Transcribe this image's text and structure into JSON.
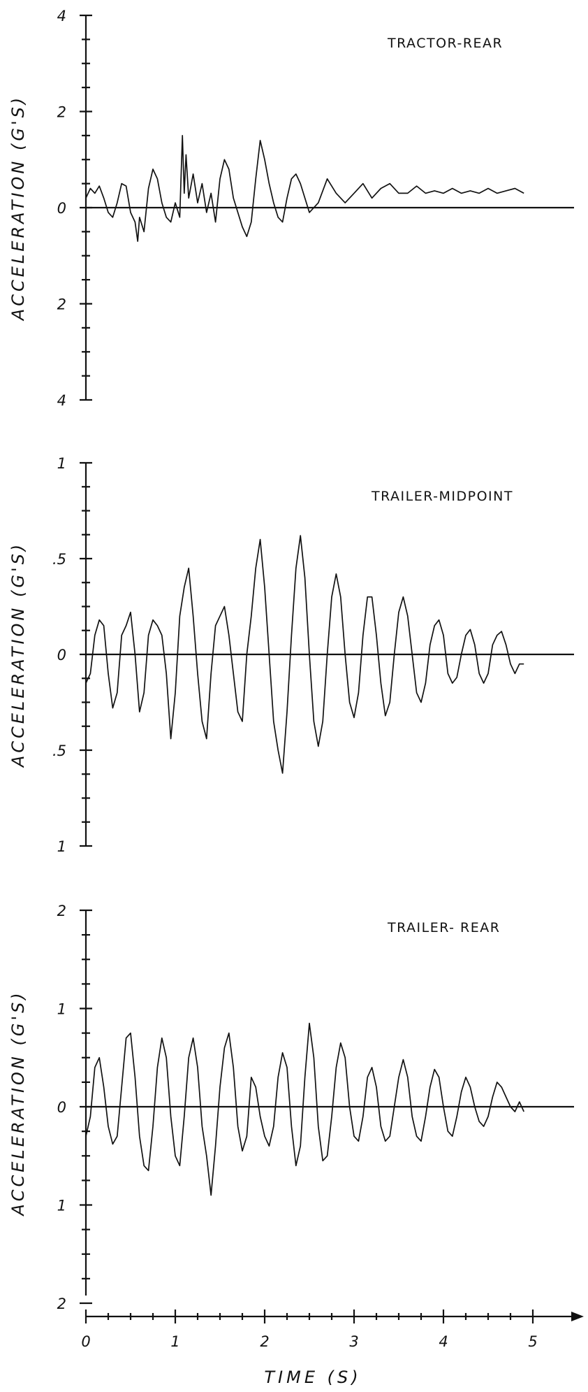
{
  "chart_data": [
    {
      "type": "line",
      "title": "TRACTOR-REAR",
      "ylabel": "ACCELERATION (G'S)",
      "xlabel": "",
      "xlim": [
        0,
        5.5
      ],
      "ylim": [
        -4,
        4
      ],
      "yticks": [
        4,
        2,
        0,
        -2,
        -4
      ],
      "ytick_labels": [
        "4",
        "2",
        "0",
        "2",
        "4"
      ],
      "grid": false,
      "series": [
        {
          "x": [
            0.0,
            0.05,
            0.1,
            0.15,
            0.2,
            0.25,
            0.3,
            0.35,
            0.4,
            0.45,
            0.5,
            0.55,
            0.58,
            0.6,
            0.65,
            0.7,
            0.75,
            0.8,
            0.85,
            0.9,
            0.95,
            1.0,
            1.05,
            1.08,
            1.1,
            1.12,
            1.15,
            1.2,
            1.25,
            1.3,
            1.35,
            1.4,
            1.45,
            1.5,
            1.55,
            1.6,
            1.65,
            1.7,
            1.75,
            1.8,
            1.85,
            1.9,
            1.95,
            2.0,
            2.05,
            2.1,
            2.15,
            2.2,
            2.25,
            2.3,
            2.35,
            2.4,
            2.5,
            2.6,
            2.7,
            2.8,
            2.9,
            3.0,
            3.1,
            3.2,
            3.3,
            3.4,
            3.5,
            3.6,
            3.7,
            3.8,
            3.9,
            4.0,
            4.1,
            4.2,
            4.3,
            4.4,
            4.5,
            4.6,
            4.7,
            4.8,
            4.9
          ],
          "y": [
            0.2,
            0.4,
            0.3,
            0.45,
            0.2,
            -0.1,
            -0.2,
            0.1,
            0.5,
            0.45,
            -0.1,
            -0.3,
            -0.7,
            -0.2,
            -0.5,
            0.4,
            0.8,
            0.6,
            0.1,
            -0.2,
            -0.3,
            0.1,
            -0.2,
            1.5,
            0.3,
            1.1,
            0.2,
            0.7,
            0.1,
            0.5,
            -0.1,
            0.3,
            -0.3,
            0.6,
            1.0,
            0.8,
            0.2,
            -0.1,
            -0.4,
            -0.6,
            -0.3,
            0.6,
            1.4,
            1.0,
            0.5,
            0.1,
            -0.2,
            -0.3,
            0.2,
            0.6,
            0.7,
            0.5,
            -0.1,
            0.1,
            0.6,
            0.3,
            0.1,
            0.3,
            0.5,
            0.2,
            0.4,
            0.5,
            0.3,
            0.3,
            0.45,
            0.3,
            0.35,
            0.3,
            0.4,
            0.3,
            0.35,
            0.3,
            0.4,
            0.3,
            0.35,
            0.4,
            0.3
          ]
        }
      ]
    },
    {
      "type": "line",
      "title": "TRAILER-MIDPOINT",
      "ylabel": "ACCELERATION (G'S)",
      "xlabel": "",
      "xlim": [
        0,
        5.5
      ],
      "ylim": [
        -1,
        1
      ],
      "yticks": [
        1,
        0.5,
        0,
        -0.5,
        -1
      ],
      "ytick_labels": [
        "1",
        ".5",
        "0",
        ".5",
        "1"
      ],
      "grid": false,
      "series": [
        {
          "x": [
            0.0,
            0.05,
            0.1,
            0.15,
            0.2,
            0.25,
            0.3,
            0.35,
            0.4,
            0.45,
            0.5,
            0.55,
            0.6,
            0.65,
            0.7,
            0.75,
            0.8,
            0.85,
            0.9,
            0.95,
            1.0,
            1.05,
            1.1,
            1.15,
            1.2,
            1.25,
            1.3,
            1.35,
            1.4,
            1.45,
            1.5,
            1.55,
            1.6,
            1.65,
            1.7,
            1.75,
            1.8,
            1.85,
            1.9,
            1.95,
            2.0,
            2.05,
            2.1,
            2.15,
            2.2,
            2.25,
            2.3,
            2.35,
            2.4,
            2.45,
            2.5,
            2.55,
            2.6,
            2.65,
            2.7,
            2.75,
            2.8,
            2.85,
            2.9,
            2.95,
            3.0,
            3.05,
            3.1,
            3.15,
            3.2,
            3.25,
            3.3,
            3.35,
            3.4,
            3.45,
            3.5,
            3.55,
            3.6,
            3.65,
            3.7,
            3.75,
            3.8,
            3.85,
            3.9,
            3.95,
            4.0,
            4.05,
            4.1,
            4.15,
            4.2,
            4.25,
            4.3,
            4.35,
            4.4,
            4.45,
            4.5,
            4.55,
            4.6,
            4.65,
            4.7,
            4.75,
            4.8,
            4.85,
            4.9
          ],
          "y": [
            -0.15,
            -0.1,
            0.1,
            0.18,
            0.15,
            -0.1,
            -0.28,
            -0.2,
            0.1,
            0.15,
            0.22,
            0.0,
            -0.3,
            -0.2,
            0.1,
            0.18,
            0.15,
            0.1,
            -0.1,
            -0.44,
            -0.2,
            0.2,
            0.35,
            0.45,
            0.2,
            -0.1,
            -0.35,
            -0.44,
            -0.1,
            0.15,
            0.2,
            0.25,
            0.1,
            -0.1,
            -0.3,
            -0.35,
            0.0,
            0.2,
            0.45,
            0.6,
            0.35,
            0.0,
            -0.35,
            -0.5,
            -0.62,
            -0.3,
            0.1,
            0.45,
            0.62,
            0.4,
            0.0,
            -0.35,
            -0.48,
            -0.35,
            0.0,
            0.3,
            0.42,
            0.3,
            0.0,
            -0.25,
            -0.33,
            -0.2,
            0.1,
            0.3,
            0.3,
            0.1,
            -0.15,
            -0.32,
            -0.25,
            0.0,
            0.22,
            0.3,
            0.2,
            0.0,
            -0.2,
            -0.25,
            -0.15,
            0.05,
            0.15,
            0.18,
            0.1,
            -0.1,
            -0.15,
            -0.12,
            0.0,
            0.1,
            0.13,
            0.05,
            -0.1,
            -0.15,
            -0.1,
            0.05,
            0.1,
            0.12,
            0.05,
            -0.05,
            -0.1,
            -0.05,
            -0.05
          ]
        }
      ]
    },
    {
      "type": "line",
      "title": "TRAILER- REAR",
      "ylabel": "ACCELERATION (G'S)",
      "xlabel": "TIME (S)",
      "xlim": [
        0,
        5.5
      ],
      "ylim": [
        -2,
        2
      ],
      "yticks": [
        2,
        1,
        0,
        -1,
        -2
      ],
      "ytick_labels": [
        "2",
        "1",
        "0",
        "1",
        "2"
      ],
      "xticks": [
        0,
        1,
        2,
        3,
        4,
        5
      ],
      "xtick_labels": [
        "0",
        "1",
        "2",
        "3",
        "4",
        "5"
      ],
      "grid": false,
      "series": [
        {
          "x": [
            0.0,
            0.05,
            0.1,
            0.15,
            0.2,
            0.25,
            0.3,
            0.35,
            0.4,
            0.45,
            0.5,
            0.55,
            0.6,
            0.65,
            0.7,
            0.75,
            0.8,
            0.85,
            0.9,
            0.95,
            1.0,
            1.05,
            1.1,
            1.15,
            1.2,
            1.25,
            1.3,
            1.35,
            1.4,
            1.45,
            1.5,
            1.55,
            1.6,
            1.65,
            1.7,
            1.75,
            1.8,
            1.85,
            1.9,
            1.95,
            2.0,
            2.05,
            2.1,
            2.15,
            2.2,
            2.25,
            2.3,
            2.35,
            2.4,
            2.45,
            2.5,
            2.55,
            2.6,
            2.65,
            2.7,
            2.75,
            2.8,
            2.85,
            2.9,
            2.95,
            3.0,
            3.05,
            3.1,
            3.15,
            3.2,
            3.25,
            3.3,
            3.35,
            3.4,
            3.45,
            3.5,
            3.55,
            3.6,
            3.65,
            3.7,
            3.75,
            3.8,
            3.85,
            3.9,
            3.95,
            4.0,
            4.05,
            4.1,
            4.15,
            4.2,
            4.25,
            4.3,
            4.35,
            4.4,
            4.45,
            4.5,
            4.55,
            4.6,
            4.65,
            4.7,
            4.75,
            4.8,
            4.85,
            4.9
          ],
          "y": [
            -0.3,
            -0.1,
            0.4,
            0.5,
            0.2,
            -0.2,
            -0.38,
            -0.3,
            0.2,
            0.7,
            0.75,
            0.3,
            -0.3,
            -0.6,
            -0.65,
            -0.2,
            0.4,
            0.7,
            0.5,
            -0.1,
            -0.5,
            -0.6,
            -0.1,
            0.5,
            0.7,
            0.4,
            -0.2,
            -0.5,
            -0.9,
            -0.4,
            0.2,
            0.6,
            0.75,
            0.4,
            -0.2,
            -0.45,
            -0.3,
            0.3,
            0.2,
            -0.1,
            -0.3,
            -0.4,
            -0.2,
            0.3,
            0.55,
            0.4,
            -0.2,
            -0.6,
            -0.4,
            0.3,
            0.85,
            0.5,
            -0.2,
            -0.55,
            -0.5,
            -0.1,
            0.4,
            0.65,
            0.5,
            0.0,
            -0.3,
            -0.35,
            -0.1,
            0.3,
            0.4,
            0.2,
            -0.2,
            -0.35,
            -0.3,
            0.0,
            0.3,
            0.48,
            0.3,
            -0.1,
            -0.3,
            -0.35,
            -0.1,
            0.2,
            0.38,
            0.3,
            0.0,
            -0.25,
            -0.3,
            -0.1,
            0.15,
            0.3,
            0.2,
            0.0,
            -0.15,
            -0.2,
            -0.1,
            0.1,
            0.25,
            0.2,
            0.1,
            0.0,
            -0.05,
            0.05,
            -0.05
          ]
        }
      ]
    }
  ]
}
